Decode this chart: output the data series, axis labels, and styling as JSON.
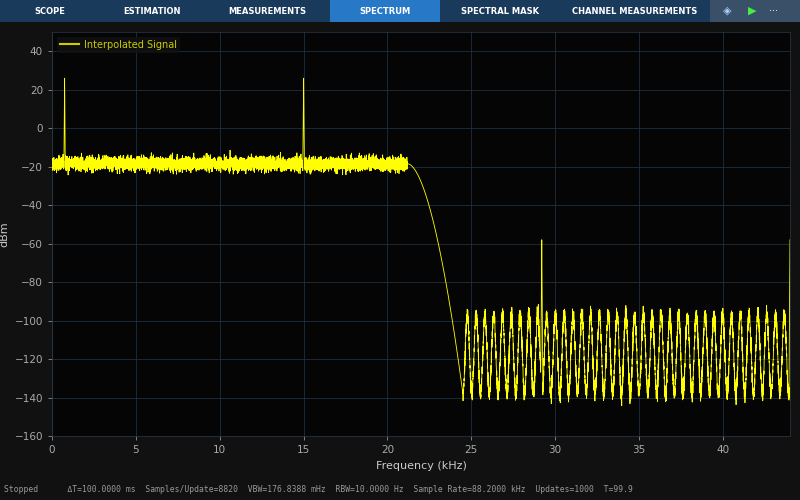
{
  "bg_color": "#111111",
  "plot_bg_color": "#050505",
  "toolbar_bg": "#1a3a5c",
  "toolbar_active_bg": "#2878c8",
  "toolbar_text_color": "#ffffff",
  "toolbar_items": [
    "SCOPE",
    "ESTIMATION",
    "MEASUREMENTS",
    "SPECTRUM",
    "SPECTRAL MASK",
    "CHANNEL MEASUREMENTS"
  ],
  "toolbar_active_index": 3,
  "status_bar_bg": "#1a1a1a",
  "status_text": "Stopped      ΔT=100.0000 ms  Samples/Update=8820  VBW=176.8388 mHz  RBW=10.0000 Hz  Sample Rate=88.2000 kHz  Updates=1000  T=99.9",
  "legend_label": "Interpolated Signal",
  "legend_color": "#cccc00",
  "line_color": "#ffff00",
  "grid_color": "#1e3040",
  "axis_label_color": "#cccccc",
  "tick_color": "#aaaaaa",
  "ylabel": "dBm",
  "xlabel": "Frequency (kHz)",
  "xlim": [
    0,
    44
  ],
  "ylim": [
    -160,
    50
  ],
  "yticks": [
    -160,
    -140,
    -120,
    -100,
    -80,
    -60,
    -40,
    -20,
    0,
    20,
    40
  ],
  "xticks": [
    0,
    5,
    10,
    15,
    20,
    25,
    30,
    35,
    40
  ],
  "noise_floor": -18.5,
  "noise_amplitude": 1.8,
  "spike1_freq": 0.75,
  "spike1_height": 26,
  "spike2_freq": 15.0,
  "spike2_height": 26,
  "spike3_freq": 29.2,
  "spike3_height": -58,
  "spike4_freq": 44.0,
  "spike4_height": -58,
  "transition_start": 21.2,
  "transition_end": 24.5,
  "stopband_floor": -105,
  "stopband_peak": -97,
  "stopband_valley": -138,
  "ripple_period_khz": 1.05
}
